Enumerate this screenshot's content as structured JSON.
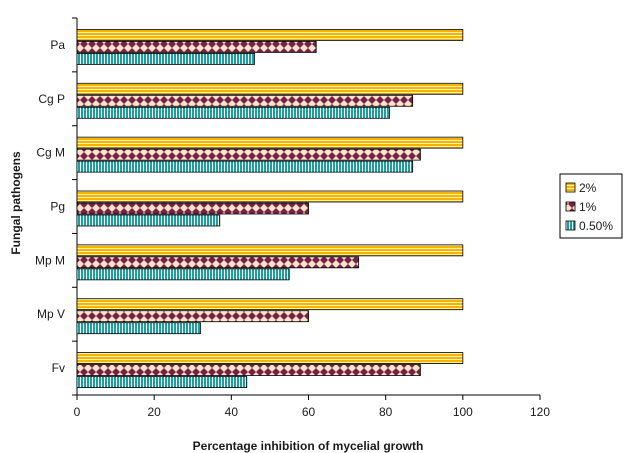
{
  "chart_data": {
    "type": "bar",
    "orientation": "horizontal",
    "categories": [
      "Pa",
      "Cg P",
      "Cg M",
      "Pg",
      "Mp M",
      "Mp V",
      "Fv"
    ],
    "series": [
      {
        "name": "2%",
        "values": [
          100,
          100,
          100,
          100,
          100,
          100,
          100
        ],
        "color": "#f4b400",
        "pattern": "horizontal-stripes"
      },
      {
        "name": "1%",
        "values": [
          62,
          87,
          89,
          60,
          73,
          60,
          89
        ],
        "color": "#7a1f4a",
        "pattern": "diamonds"
      },
      {
        "name": "0.50%",
        "values": [
          46,
          81,
          87,
          37,
          55,
          32,
          44
        ],
        "color": "#1aa0a0",
        "pattern": "vertical-stripes"
      }
    ],
    "xlabel": "Percentage inhibition of mycelial growth",
    "ylabel": "Fungal pathogens",
    "xlim": [
      0,
      120
    ],
    "xticks": [
      0,
      20,
      40,
      60,
      80,
      100,
      120
    ],
    "grid": false,
    "legend_position": "right"
  }
}
